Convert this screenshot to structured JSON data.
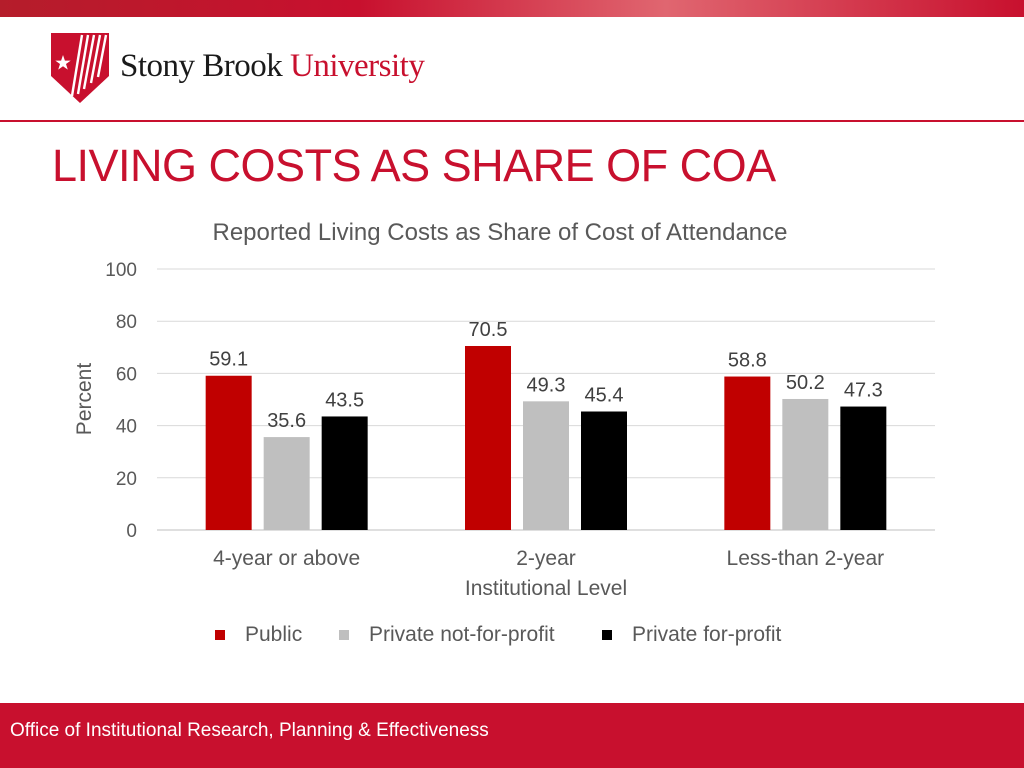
{
  "brand": {
    "name_part1": "Stony Brook",
    "name_part2": "University",
    "primary_color": "#c8102e",
    "logo_icon": "star-shield-icon"
  },
  "slide": {
    "title": "LIVING COSTS AS SHARE OF COA"
  },
  "chart_data": {
    "type": "bar",
    "title": "Reported Living Costs as Share of Cost of Attendance",
    "xlabel": "Institutional Level",
    "ylabel": "Percent",
    "ylim": [
      0,
      100
    ],
    "yticks": [
      0,
      20,
      40,
      60,
      80,
      100
    ],
    "grid": true,
    "legend_position": "bottom",
    "categories": [
      "4-year or above",
      "2-year",
      "Less-than 2-year"
    ],
    "series": [
      {
        "name": "Public",
        "color": "#c00000",
        "values": [
          59.1,
          70.5,
          58.8
        ]
      },
      {
        "name": "Private not-for-profit",
        "color": "#bfbfbf",
        "values": [
          35.6,
          49.3,
          50.2
        ]
      },
      {
        "name": "Private for-profit",
        "color": "#000000",
        "values": [
          43.5,
          45.4,
          47.3
        ]
      }
    ]
  },
  "footer": {
    "text": "Office of Institutional Research, Planning & Effectiveness"
  }
}
